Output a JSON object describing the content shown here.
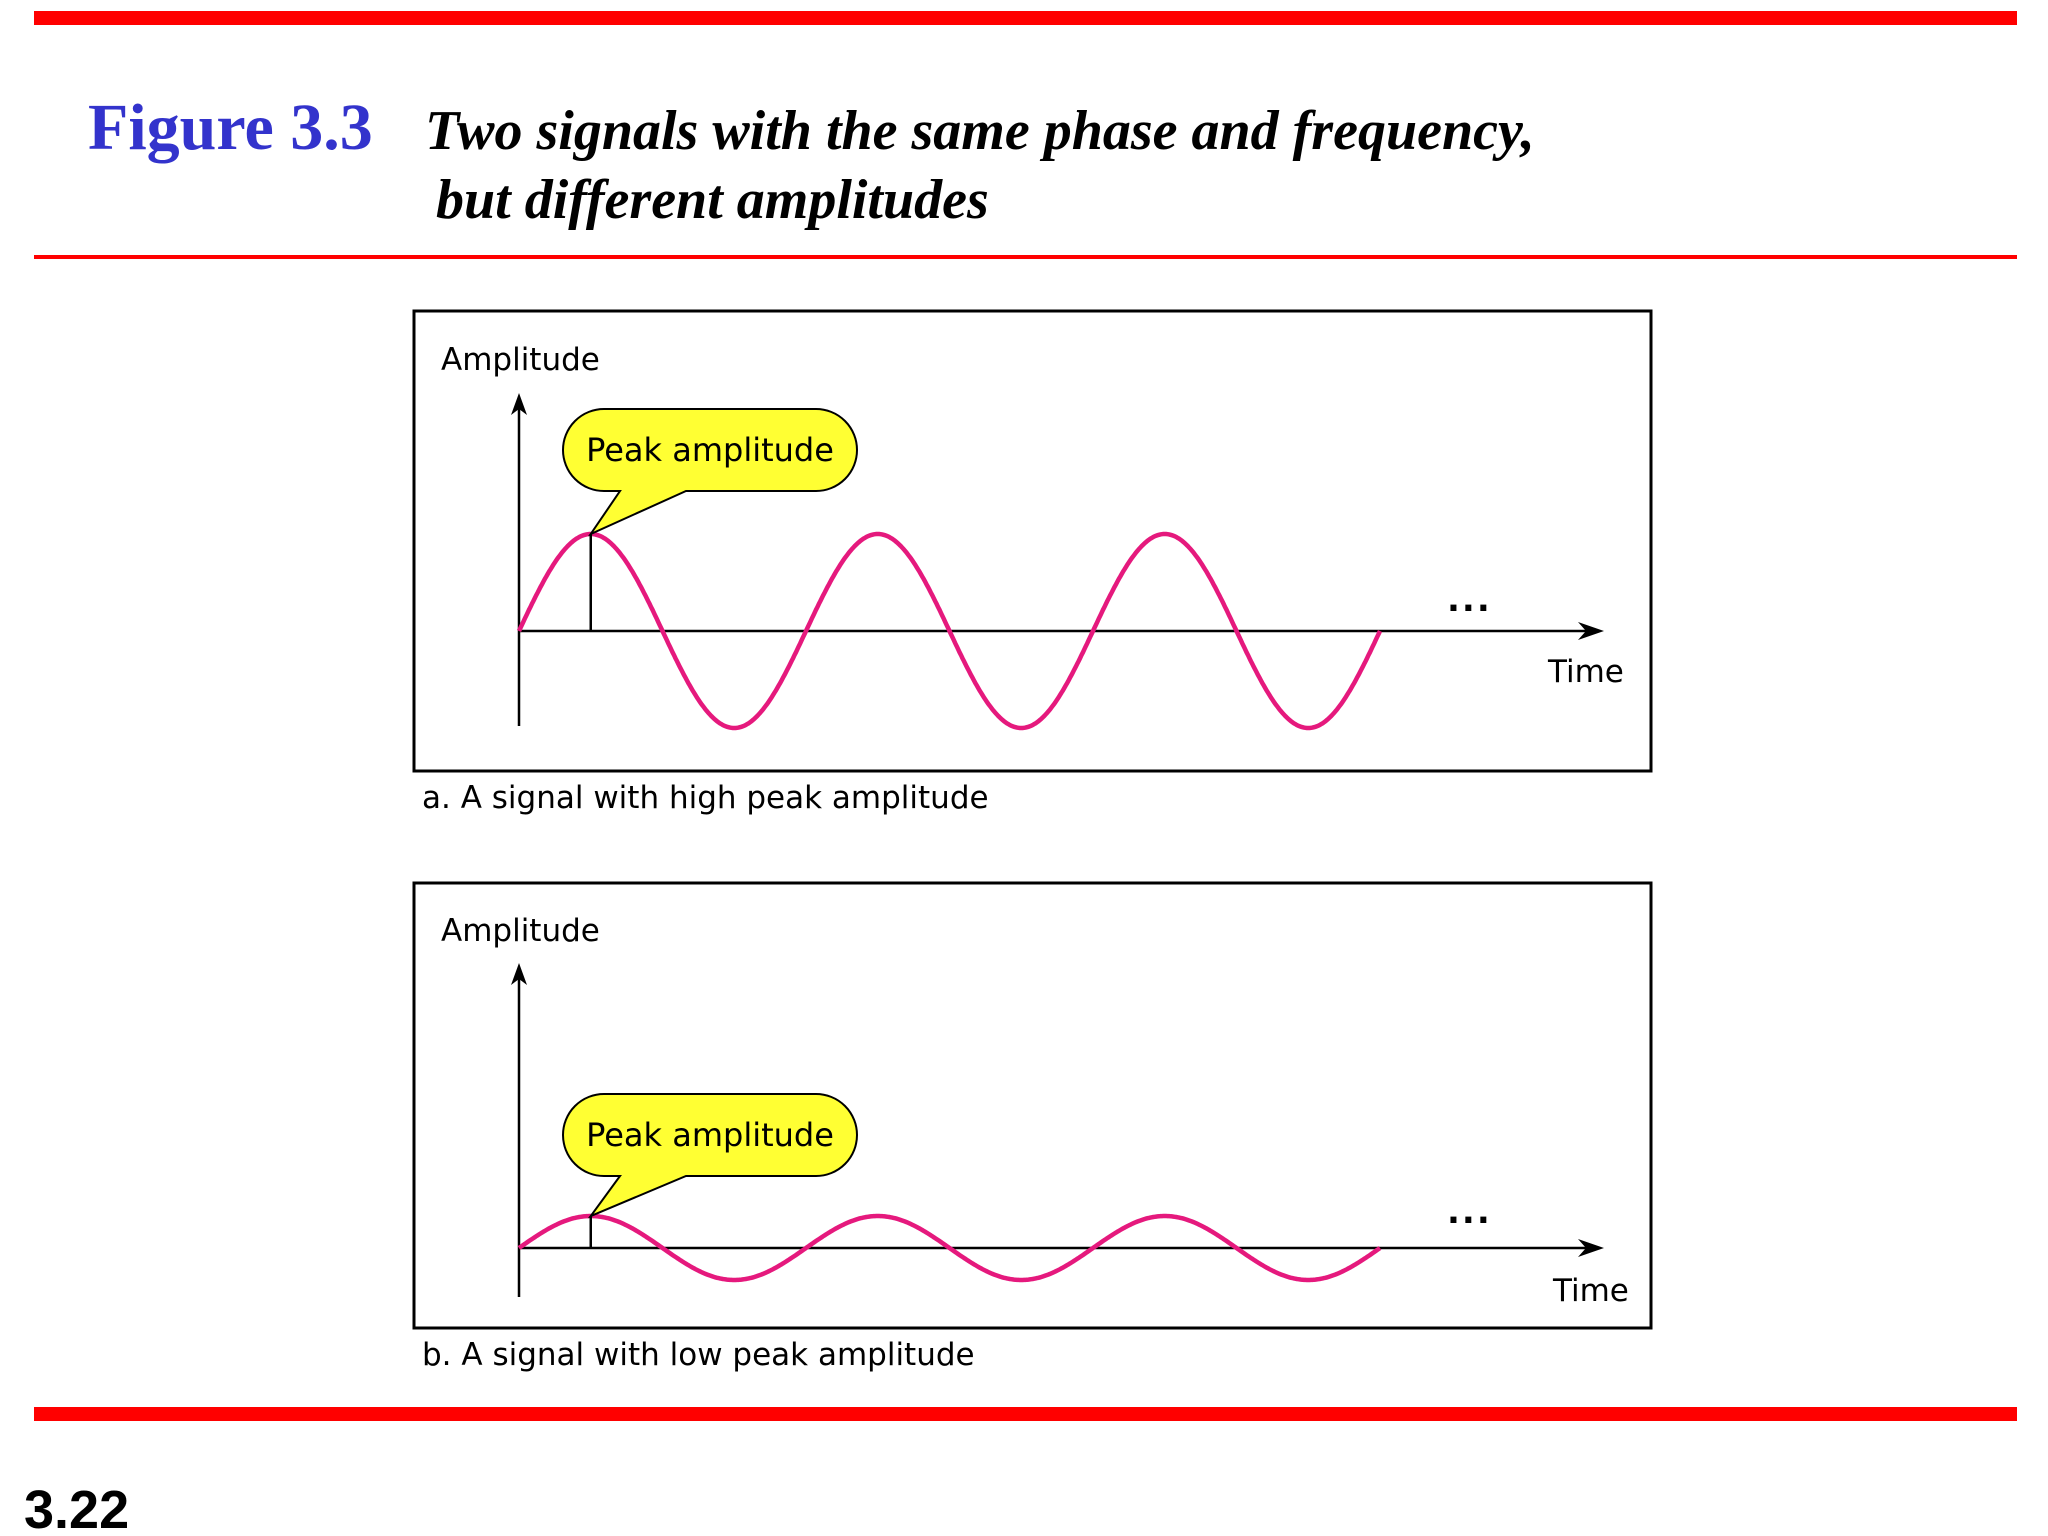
{
  "header": {
    "figure_label": "Figure 3.3",
    "title_lines": [
      "Two signals with the same phase and frequency,",
      "but different amplitudes"
    ]
  },
  "panels": [
    {
      "y_axis_label": "Amplitude",
      "x_axis_label": "Time",
      "callout": "Peak amplitude",
      "ellipsis": "...",
      "caption": "a. A signal with high peak amplitude"
    },
    {
      "y_axis_label": "Amplitude",
      "x_axis_label": "Time",
      "callout": "Peak amplitude",
      "ellipsis": "...",
      "caption": "b. A signal with low peak amplitude"
    }
  ],
  "footer": {
    "page_number": "3.22"
  }
}
